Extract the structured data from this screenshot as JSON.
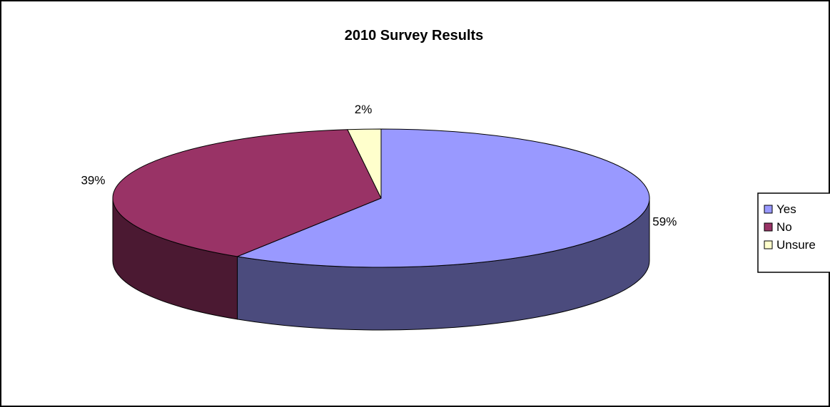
{
  "chart_data": {
    "type": "pie",
    "variant": "3d",
    "title": "2010 Survey Results",
    "categories": [
      "Yes",
      "No",
      "Unsure"
    ],
    "values": [
      59,
      39,
      2
    ],
    "data_labels": [
      "59%",
      "39%",
      "2%"
    ],
    "legend": {
      "placement": "right",
      "entries": [
        "Yes",
        "No",
        "Unsure"
      ]
    },
    "colors": {
      "Yes": "#9999FF",
      "No": "#993366",
      "Unsure": "#FFFFCC"
    },
    "side_colors": {
      "Yes": "#4B4B7D",
      "No": "#4B1932",
      "Unsure": "#7D7D64"
    }
  }
}
